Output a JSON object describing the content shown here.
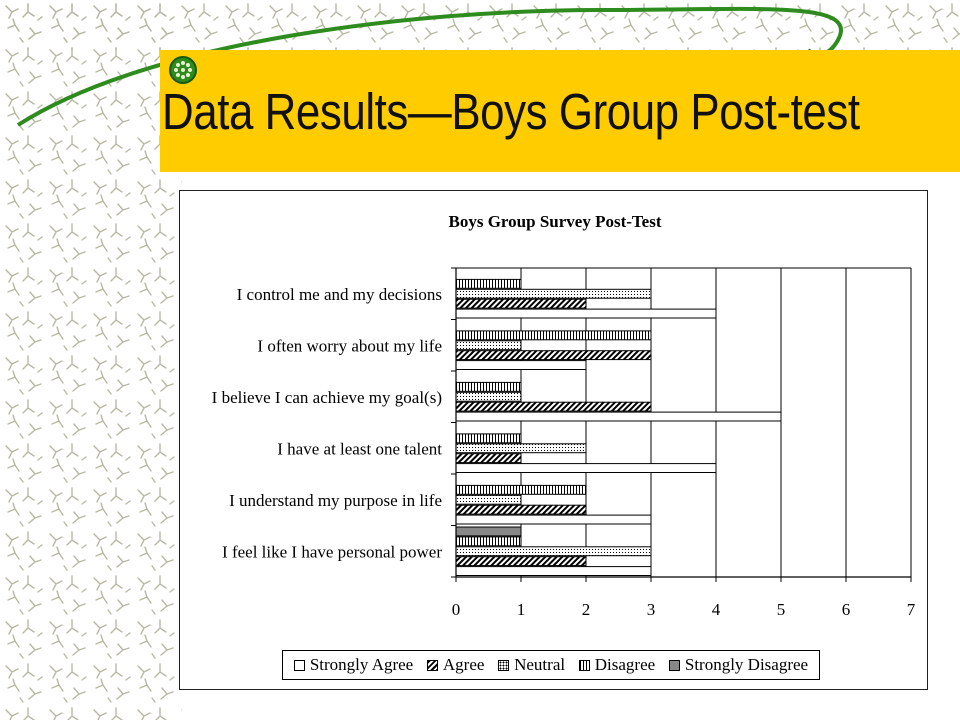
{
  "slide": {
    "title": "Data Results—Boys Group Post-test",
    "colors": {
      "title_band": "#ffcc00",
      "curve": "#2e8b1e",
      "pattern": "#b8b8a4"
    },
    "icons": [
      "green-dotted-ball-icon"
    ]
  },
  "chart_data": {
    "type": "bar",
    "orientation": "horizontal",
    "title": "Boys Group Survey Post-Test",
    "xlabel": "",
    "ylabel": "",
    "xlim": [
      0,
      7
    ],
    "x_ticks": [
      "0",
      "1",
      "2",
      "3",
      "4",
      "5",
      "6",
      "7"
    ],
    "grid": true,
    "legend_position": "bottom",
    "categories": [
      "I control me and my decisions",
      "I often worry about my life",
      "I believe I can achieve my goal(s)",
      "I have at least one talent",
      "I understand my purpose in life",
      "I feel like I have personal power"
    ],
    "series": [
      {
        "name": "Strongly Agree",
        "pattern": "none",
        "values": [
          4,
          2,
          5,
          4,
          3,
          3
        ]
      },
      {
        "name": "Agree",
        "pattern": "diagonal",
        "values": [
          2,
          3,
          3,
          1,
          2,
          2
        ]
      },
      {
        "name": "Neutral",
        "pattern": "dots",
        "values": [
          3,
          1,
          1,
          2,
          1,
          3
        ]
      },
      {
        "name": "Disagree",
        "pattern": "vertical",
        "values": [
          1,
          3,
          1,
          1,
          2,
          1
        ]
      },
      {
        "name": "Strongly Disagree",
        "pattern": "gray",
        "values": [
          0,
          0,
          0,
          0,
          0,
          1
        ]
      }
    ]
  }
}
